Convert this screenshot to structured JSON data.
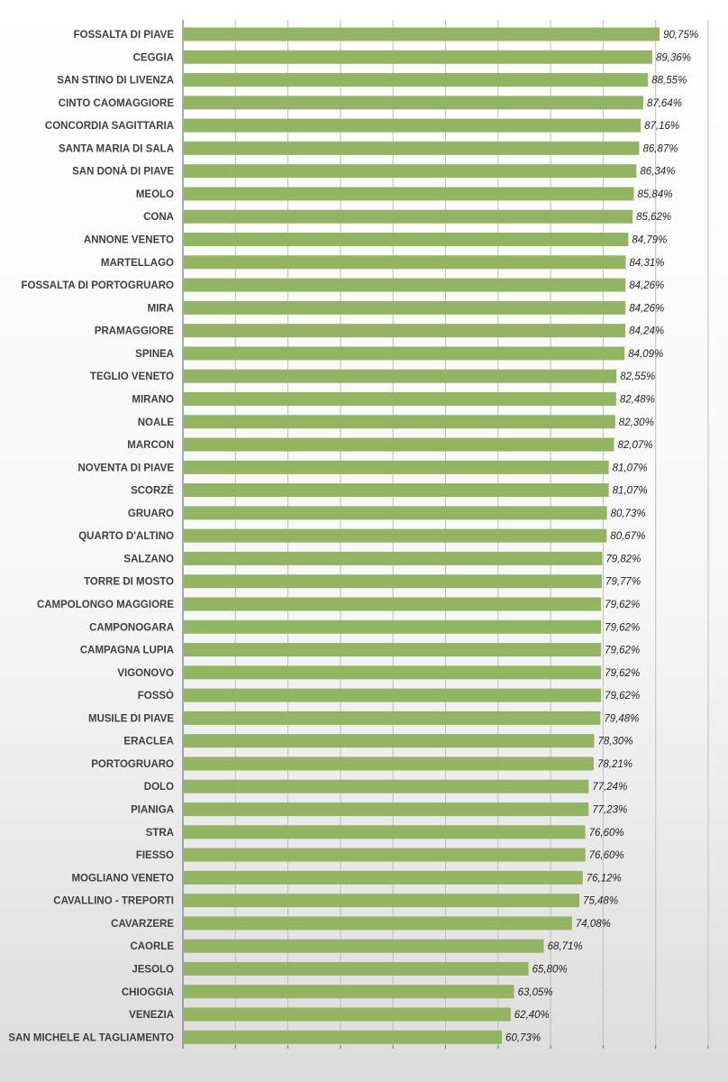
{
  "chart_data": {
    "type": "bar",
    "orientation": "horizontal",
    "title": "",
    "xlabel": "",
    "ylabel": "",
    "xlim": [
      0,
      100
    ],
    "grid": true,
    "legend": "none",
    "bar_color": "#93b563",
    "categories": [
      "FOSSALTA DI PIAVE",
      "CEGGIA",
      "SAN STINO DI LIVENZA",
      "CINTO CAOMAGGIORE",
      "CONCORDIA SAGITTARIA",
      "SANTA MARIA DI SALA",
      "SAN DONÀ DI PIAVE",
      "MEOLO",
      "CONA",
      "ANNONE VENETO",
      "MARTELLAGO",
      "FOSSALTA DI PORTOGRUARO",
      "MIRA",
      "PRAMAGGIORE",
      "SPINEA",
      "TEGLIO VENETO",
      "MIRANO",
      "NOALE",
      "MARCON",
      "NOVENTA DI PIAVE",
      "SCORZÈ",
      "GRUARO",
      "QUARTO D'ALTINO",
      "SALZANO",
      "TORRE DI MOSTO",
      "CAMPOLONGO MAGGIORE",
      "CAMPONOGARA",
      "CAMPAGNA LUPIA",
      "VIGONOVO",
      "FOSSÒ",
      "MUSILE DI PIAVE",
      "ERACLEA",
      "PORTOGRUARO",
      "DOLO",
      "PIANIGA",
      "STRA",
      "FIESSO",
      "MOGLIANO VENETO",
      "CAVALLINO - TREPORTI",
      "CAVARZERE",
      "CAORLE",
      "JESOLO",
      "CHIOGGIA",
      "VENEZIA",
      "SAN MICHELE AL TAGLIAMENTO"
    ],
    "values": [
      90.75,
      89.36,
      88.55,
      87.64,
      87.16,
      86.87,
      86.34,
      85.84,
      85.62,
      84.79,
      84.31,
      84.26,
      84.26,
      84.24,
      84.09,
      82.55,
      82.48,
      82.3,
      82.07,
      81.07,
      81.07,
      80.73,
      80.67,
      79.82,
      79.77,
      79.62,
      79.62,
      79.62,
      79.62,
      79.62,
      79.48,
      78.3,
      78.21,
      77.24,
      77.23,
      76.6,
      76.6,
      76.12,
      75.48,
      74.08,
      68.71,
      65.8,
      63.05,
      62.4,
      60.73
    ],
    "value_labels": [
      "90,75%",
      "89,36%",
      "88,55%",
      "87,64%",
      "87,16%",
      "86,87%",
      "86,34%",
      "85,84%",
      "85,62%",
      "84,79%",
      "84,31%",
      "84,26%",
      "84,26%",
      "84,24%",
      "84,09%",
      "82,55%",
      "82,48%",
      "82,30%",
      "82,07%",
      "81,07%",
      "81,07%",
      "80,73%",
      "80,67%",
      "79,82%",
      "79,77%",
      "79,62%",
      "79,62%",
      "79,62%",
      "79,62%",
      "79,62%",
      "79,48%",
      "78,30%",
      "78,21%",
      "77,24%",
      "77,23%",
      "76,60%",
      "76,60%",
      "76,12%",
      "75,48%",
      "74,08%",
      "68,71%",
      "65,80%",
      "63,05%",
      "62,40%",
      "60,73%"
    ]
  }
}
